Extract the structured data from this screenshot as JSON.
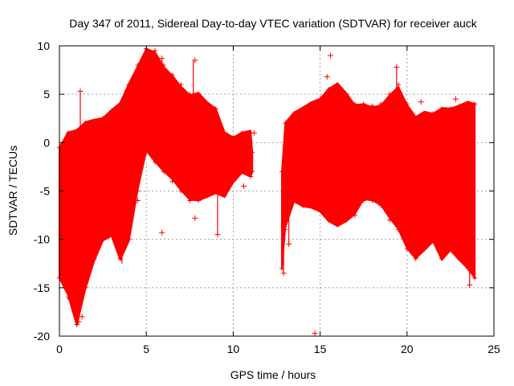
{
  "chart_data": {
    "type": "scatter",
    "title": "Day 347 of 2011, Sidereal Day-to-day VTEC variation (SDTVAR) for receiver auck",
    "xlabel": "GPS time / hours",
    "ylabel": "SDTVAR / TECUs",
    "xlim": [
      0,
      25
    ],
    "ylim": [
      -20,
      10
    ],
    "xticks": [
      0,
      5,
      10,
      15,
      20,
      25
    ],
    "yticks": [
      -20,
      -15,
      -10,
      -5,
      0,
      5,
      10
    ],
    "grid": true,
    "marker": "+",
    "color": "#ff0000",
    "band_segments": [
      {
        "name": "segment-1",
        "x_start": 0.0,
        "x_end": 11.1,
        "upper": [
          [
            0.0,
            -0.5
          ],
          [
            0.5,
            1.0
          ],
          [
            1.0,
            1.2
          ],
          [
            1.5,
            2.0
          ],
          [
            2.0,
            2.2
          ],
          [
            2.5,
            2.5
          ],
          [
            3.0,
            3.3
          ],
          [
            3.5,
            4.0
          ],
          [
            4.0,
            6.0
          ],
          [
            4.5,
            8.0
          ],
          [
            5.0,
            9.7
          ],
          [
            5.5,
            9.5
          ],
          [
            6.0,
            8.0
          ],
          [
            6.5,
            7.0
          ],
          [
            7.0,
            6.0
          ],
          [
            7.5,
            5.0
          ],
          [
            8.0,
            5.0
          ],
          [
            8.5,
            4.0
          ],
          [
            9.0,
            3.5
          ],
          [
            9.5,
            1.0
          ],
          [
            10.0,
            0.5
          ],
          [
            10.5,
            1.0
          ],
          [
            11.0,
            1.0
          ],
          [
            11.1,
            -1.0
          ]
        ],
        "lower": [
          [
            0.0,
            -14.0
          ],
          [
            0.5,
            -16.0
          ],
          [
            1.0,
            -18.8
          ],
          [
            1.5,
            -15.0
          ],
          [
            2.0,
            -12.0
          ],
          [
            2.5,
            -10.0
          ],
          [
            3.0,
            -9.5
          ],
          [
            3.5,
            -12.0
          ],
          [
            4.0,
            -10.0
          ],
          [
            4.5,
            -5.0
          ],
          [
            5.0,
            -1.0
          ],
          [
            5.5,
            -2.0
          ],
          [
            6.0,
            -3.0
          ],
          [
            6.5,
            -4.0
          ],
          [
            7.0,
            -5.0
          ],
          [
            7.5,
            -6.0
          ],
          [
            8.0,
            -6.0
          ],
          [
            8.5,
            -5.5
          ],
          [
            9.0,
            -5.0
          ],
          [
            9.5,
            -5.5
          ],
          [
            10.0,
            -4.0
          ],
          [
            10.5,
            -3.0
          ],
          [
            11.0,
            -3.5
          ],
          [
            11.1,
            -3.0
          ]
        ]
      },
      {
        "name": "segment-2",
        "x_start": 12.8,
        "x_end": 23.9,
        "upper": [
          [
            12.8,
            -3.0
          ],
          [
            13.0,
            2.0
          ],
          [
            13.5,
            3.0
          ],
          [
            14.0,
            3.5
          ],
          [
            14.5,
            4.0
          ],
          [
            15.0,
            4.5
          ],
          [
            15.5,
            5.5
          ],
          [
            16.0,
            6.0
          ],
          [
            16.5,
            5.0
          ],
          [
            17.0,
            4.0
          ],
          [
            17.5,
            4.0
          ],
          [
            18.0,
            3.8
          ],
          [
            18.5,
            4.0
          ],
          [
            19.0,
            5.0
          ],
          [
            19.5,
            6.0
          ],
          [
            20.0,
            4.0
          ],
          [
            20.5,
            2.5
          ],
          [
            21.0,
            3.0
          ],
          [
            21.5,
            3.0
          ],
          [
            22.0,
            3.5
          ],
          [
            22.5,
            3.5
          ],
          [
            23.0,
            3.8
          ],
          [
            23.5,
            4.0
          ],
          [
            23.9,
            4.0
          ]
        ],
        "lower": [
          [
            12.8,
            -13.0
          ],
          [
            13.0,
            -9.0
          ],
          [
            13.5,
            -6.0
          ],
          [
            14.0,
            -6.5
          ],
          [
            14.5,
            -6.5
          ],
          [
            15.0,
            -7.0
          ],
          [
            15.5,
            -8.0
          ],
          [
            16.0,
            -8.5
          ],
          [
            16.5,
            -8.0
          ],
          [
            17.0,
            -7.5
          ],
          [
            17.5,
            -6.0
          ],
          [
            18.0,
            -6.0
          ],
          [
            18.5,
            -6.5
          ],
          [
            19.0,
            -8.0
          ],
          [
            19.5,
            -9.0
          ],
          [
            20.0,
            -11.0
          ],
          [
            20.5,
            -12.0
          ],
          [
            21.0,
            -11.0
          ],
          [
            21.5,
            -10.0
          ],
          [
            22.0,
            -12.0
          ],
          [
            22.5,
            -11.0
          ],
          [
            23.0,
            -12.0
          ],
          [
            23.5,
            -13.0
          ],
          [
            23.9,
            -14.0
          ]
        ]
      }
    ],
    "outliers": [
      {
        "x": 1.2,
        "y": 5.3
      },
      {
        "x": 1.3,
        "y": -18.0
      },
      {
        "x": 1.1,
        "y": -18.5
      },
      {
        "x": 4.5,
        "y": -6.0
      },
      {
        "x": 5.9,
        "y": -9.3
      },
      {
        "x": 5.9,
        "y": 8.7
      },
      {
        "x": 7.8,
        "y": 8.5
      },
      {
        "x": 7.8,
        "y": -7.8
      },
      {
        "x": 9.1,
        "y": -9.5
      },
      {
        "x": 10.6,
        "y": -4.5
      },
      {
        "x": 11.2,
        "y": 1.0
      },
      {
        "x": 12.9,
        "y": -13.5
      },
      {
        "x": 13.2,
        "y": -10.5
      },
      {
        "x": 14.7,
        "y": -19.7
      },
      {
        "x": 15.6,
        "y": 9.0
      },
      {
        "x": 15.4,
        "y": 6.8
      },
      {
        "x": 19.4,
        "y": 7.8
      },
      {
        "x": 20.8,
        "y": 4.2
      },
      {
        "x": 22.8,
        "y": 4.5
      },
      {
        "x": 23.6,
        "y": -14.7
      }
    ],
    "spikes": [
      {
        "x": 1.2,
        "y1": -9.0,
        "y2": 5.3
      },
      {
        "x": 3.6,
        "y1": -12.5,
        "y2": 4.0
      },
      {
        "x": 5.9,
        "y1": 5.0,
        "y2": 8.7
      },
      {
        "x": 7.7,
        "y1": 4.0,
        "y2": 8.5
      },
      {
        "x": 9.1,
        "y1": -9.5,
        "y2": -5.0
      },
      {
        "x": 12.9,
        "y1": -13.5,
        "y2": -3.0
      },
      {
        "x": 13.2,
        "y1": -10.5,
        "y2": -1.0
      },
      {
        "x": 19.4,
        "y1": 4.0,
        "y2": 7.8
      },
      {
        "x": 23.6,
        "y1": -14.7,
        "y2": -8.0
      }
    ]
  }
}
